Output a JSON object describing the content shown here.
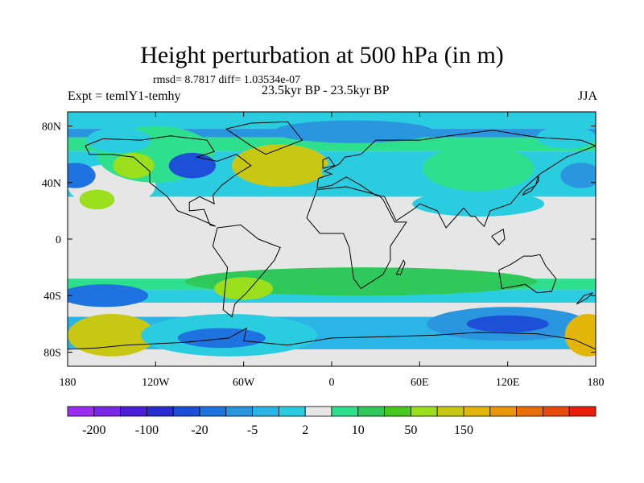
{
  "chart_data": {
    "type": "filled-contour-map",
    "title": "Height perturbation at 500 hPa (in m)",
    "stats_text": "rmsd= 8.7817 diff= 1.03534e-07",
    "left_label": "Expt = temlY1-temhy",
    "center_label": "23.5kyr BP - 23.5kyr BP",
    "right_label": "JJA",
    "x_ticks": [
      {
        "value": -180,
        "label": "180"
      },
      {
        "value": -120,
        "label": "120W"
      },
      {
        "value": -60,
        "label": "60W"
      },
      {
        "value": 0,
        "label": "0"
      },
      {
        "value": 60,
        "label": "60E"
      },
      {
        "value": 120,
        "label": "120E"
      },
      {
        "value": 180,
        "label": "180"
      }
    ],
    "y_ticks": [
      {
        "value": 80,
        "label": "80N"
      },
      {
        "value": 40,
        "label": "40N"
      },
      {
        "value": 0,
        "label": "0"
      },
      {
        "value": -40,
        "label": "40S"
      },
      {
        "value": -80,
        "label": "80S"
      }
    ],
    "lon_range": [
      -180,
      180
    ],
    "lat_range": [
      -90,
      90
    ],
    "colorbar": {
      "colors": [
        "#9a2ef0",
        "#7a28e6",
        "#4b1ed6",
        "#2a2ccf",
        "#1d50d6",
        "#1f73e0",
        "#2a96e0",
        "#2bb4e6",
        "#2acde0",
        "#e6e6e6",
        "#2ee08e",
        "#2ec95a",
        "#46c81e",
        "#9ade1c",
        "#c8c814",
        "#e1b50a",
        "#e8960a",
        "#e86e0a",
        "#e84a0a",
        "#e81e0a"
      ],
      "labels": [
        {
          "after_box": 1,
          "text": "-200"
        },
        {
          "after_box": 3,
          "text": "-100"
        },
        {
          "after_box": 5,
          "text": "-20"
        },
        {
          "after_box": 7,
          "text": "-5"
        },
        {
          "after_box": 9,
          "text": "2"
        },
        {
          "after_box": 11,
          "text": "10"
        },
        {
          "after_box": 13,
          "text": "50"
        },
        {
          "after_box": 15,
          "text": "150"
        }
      ]
    },
    "anomaly_regions": [
      {
        "lon": -120,
        "lat": 60,
        "rx": 40,
        "ry": 20,
        "color": "#2ee08e"
      },
      {
        "lon": -95,
        "lat": 52,
        "rx": 16,
        "ry": 9,
        "color": "#1d50d6"
      },
      {
        "lon": -135,
        "lat": 52,
        "rx": 14,
        "ry": 9,
        "color": "#9ade1c"
      },
      {
        "lon": 15,
        "lat": 76,
        "rx": 55,
        "ry": 8,
        "color": "#2a96e0"
      },
      {
        "lon": -35,
        "lat": 52,
        "rx": 33,
        "ry": 15,
        "color": "#c8c814"
      },
      {
        "lon": 5,
        "lat": 48,
        "rx": 12,
        "ry": 6,
        "color": "#2acde0"
      },
      {
        "lon": -175,
        "lat": 45,
        "rx": 14,
        "ry": 9,
        "color": "#1f73e0"
      },
      {
        "lon": -160,
        "lat": 28,
        "rx": 12,
        "ry": 7,
        "color": "#9ade1c"
      },
      {
        "lon": -145,
        "lat": 70,
        "rx": 22,
        "ry": 9,
        "color": "#2acde0"
      },
      {
        "lon": 160,
        "lat": 72,
        "rx": 20,
        "ry": 8,
        "color": "#2acde0"
      },
      {
        "lon": 100,
        "lat": 50,
        "rx": 38,
        "ry": 16,
        "color": "#2ee08e"
      },
      {
        "lon": 170,
        "lat": 45,
        "rx": 14,
        "ry": 9,
        "color": "#2a96e0"
      },
      {
        "lon": 100,
        "lat": 25,
        "rx": 45,
        "ry": 9,
        "color": "#2acde0"
      },
      {
        "lon": 20,
        "lat": -30,
        "rx": 120,
        "ry": 10,
        "color": "#2ec95a"
      },
      {
        "lon": -60,
        "lat": -35,
        "rx": 20,
        "ry": 8,
        "color": "#9ade1c"
      },
      {
        "lon": -155,
        "lat": -40,
        "rx": 30,
        "ry": 8,
        "color": "#1f73e0"
      },
      {
        "lon": -150,
        "lat": -68,
        "rx": 30,
        "ry": 15,
        "color": "#c8c814"
      },
      {
        "lon": -70,
        "lat": -68,
        "rx": 60,
        "ry": 15,
        "color": "#2acde0"
      },
      {
        "lon": -75,
        "lat": -70,
        "rx": 30,
        "ry": 7,
        "color": "#1f73e0"
      },
      {
        "lon": 120,
        "lat": -60,
        "rx": 55,
        "ry": 12,
        "color": "#2a96e0"
      },
      {
        "lon": 120,
        "lat": -60,
        "rx": 28,
        "ry": 6,
        "color": "#1d50d6"
      },
      {
        "lon": 175,
        "lat": -68,
        "rx": 16,
        "ry": 15,
        "color": "#e1b50a"
      }
    ]
  }
}
